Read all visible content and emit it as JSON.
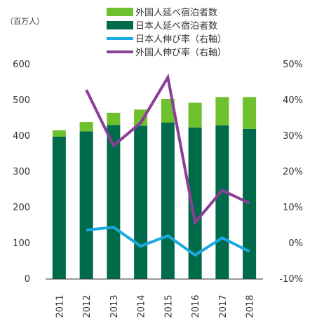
{
  "chart_data": {
    "type": "bar",
    "unit_label": "（百万人）",
    "categories": [
      "2011",
      "2012",
      "2013",
      "2014",
      "2015",
      "2016",
      "2017",
      "2018"
    ],
    "left_axis": {
      "range": [
        0,
        600
      ],
      "ticks": [
        "0",
        "100",
        "200",
        "300",
        "400",
        "500",
        "600"
      ]
    },
    "right_axis": {
      "range": [
        -10,
        50
      ],
      "ticks": [
        "-10%",
        "0%",
        "10%",
        "20%",
        "30%",
        "40%",
        "50%"
      ]
    },
    "grid": false,
    "legend_position": "top-right",
    "stacked_bars": [
      {
        "name": "日本人延べ宿泊者数",
        "color": "#006b4a",
        "values": [
          398,
          413,
          431,
          429,
          438,
          424,
          430,
          420
        ]
      },
      {
        "name": "外国人延べ宿泊者数",
        "color": "#6fc02e",
        "values": [
          18,
          26,
          34,
          45,
          66,
          69,
          79,
          89
        ]
      }
    ],
    "lines": [
      {
        "name": "日本人伸び率（右軸）",
        "color": "#1aa9e0",
        "axis": "right",
        "values": [
          null,
          3.7,
          4.5,
          -0.8,
          2.1,
          -3.3,
          1.5,
          -2.3
        ]
      },
      {
        "name": "外国人伸び率（右軸）",
        "color": "#8b3e98",
        "axis": "right",
        "values": [
          null,
          42.9,
          27.3,
          33.7,
          46.4,
          5.8,
          14.8,
          11.2
        ]
      }
    ]
  }
}
